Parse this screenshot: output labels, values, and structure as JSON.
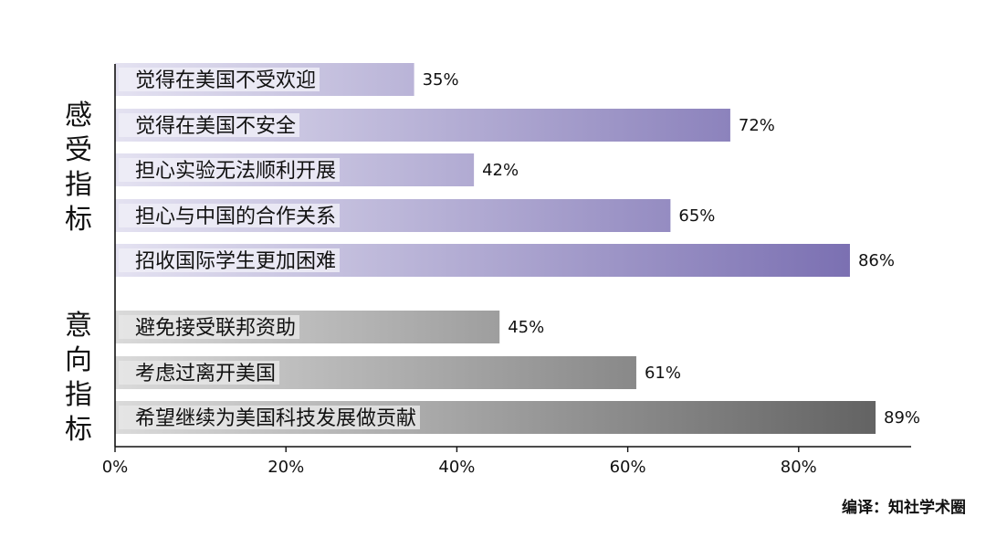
{
  "chart_data": {
    "type": "bar",
    "orientation": "horizontal",
    "xlim": [
      0,
      0.93
    ],
    "x_ticks": [
      {
        "value": 0,
        "label": "0%"
      },
      {
        "value": 0.2,
        "label": "20%"
      },
      {
        "value": 0.4,
        "label": "40%"
      },
      {
        "value": 0.6,
        "label": "60%"
      },
      {
        "value": 0.8,
        "label": "80%"
      }
    ],
    "grid": false,
    "groups": [
      {
        "label": "感受指标",
        "color": "#7b70b2",
        "bars": [
          {
            "category": "觉得在美国不受欢迎",
            "value": 0.35,
            "value_label": "35%"
          },
          {
            "category": "觉得在美国不安全",
            "value": 0.72,
            "value_label": "72%"
          },
          {
            "category": "担心实验无法顺利开展",
            "value": 0.42,
            "value_label": "42%"
          },
          {
            "category": "担心与中国的合作关系",
            "value": 0.65,
            "value_label": "65%"
          },
          {
            "category": "招收国际学生更加困难",
            "value": 0.86,
            "value_label": "86%"
          }
        ]
      },
      {
        "label": "意向指标",
        "color": "#636363",
        "bars": [
          {
            "category": "避免接受联邦资助",
            "value": 0.45,
            "value_label": "45%"
          },
          {
            "category": "考虑过离开美国",
            "value": 0.61,
            "value_label": "61%"
          },
          {
            "category": "希望继续为美国科技发展做贡献",
            "value": 0.89,
            "value_label": "89%"
          }
        ]
      }
    ]
  },
  "credit": "编译：知社学术圈"
}
